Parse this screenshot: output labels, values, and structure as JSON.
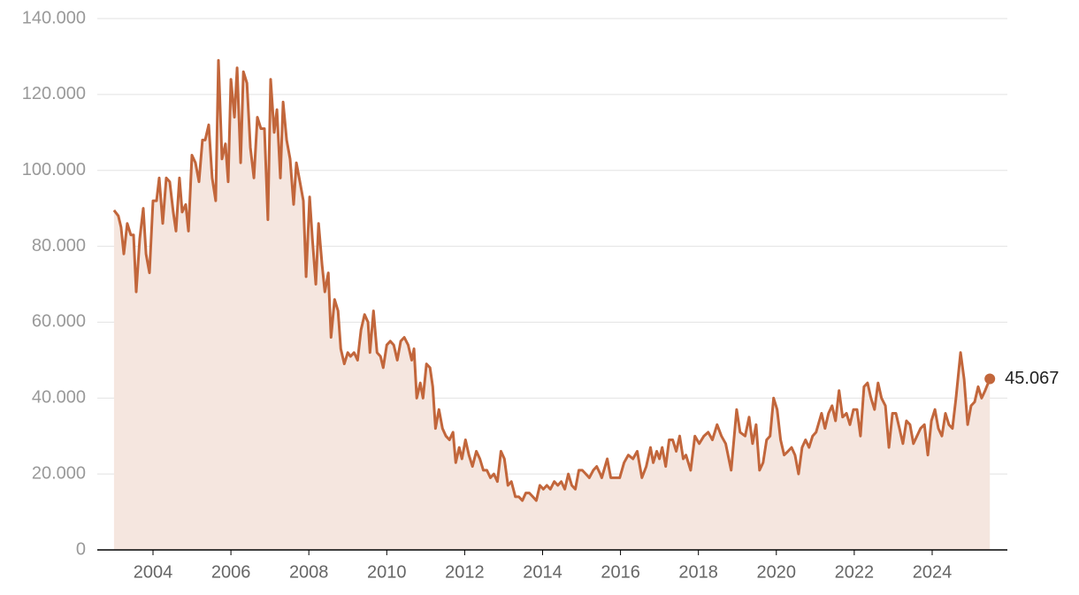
{
  "chart_data": {
    "type": "area",
    "x": [
      2003.0,
      2003.11,
      2003.18,
      2003.25,
      2003.34,
      2003.43,
      2003.5,
      2003.57,
      2003.66,
      2003.75,
      2003.82,
      2003.91,
      2004.0,
      2004.09,
      2004.16,
      2004.25,
      2004.34,
      2004.43,
      2004.52,
      2004.59,
      2004.68,
      2004.75,
      2004.84,
      2004.91,
      2005.0,
      2005.09,
      2005.18,
      2005.27,
      2005.34,
      2005.43,
      2005.52,
      2005.61,
      2005.68,
      2005.77,
      2005.86,
      2005.93,
      2006.0,
      2006.09,
      2006.16,
      2006.25,
      2006.32,
      2006.41,
      2006.5,
      2006.59,
      2006.68,
      2006.77,
      2006.86,
      2006.95,
      2007.02,
      2007.11,
      2007.18,
      2007.27,
      2007.34,
      2007.43,
      2007.52,
      2007.61,
      2007.68,
      2007.77,
      2007.86,
      2007.93,
      2008.02,
      2008.09,
      2008.18,
      2008.25,
      2008.34,
      2008.41,
      2008.5,
      2008.57,
      2008.66,
      2008.75,
      2008.82,
      2008.91,
      2009.0,
      2009.07,
      2009.16,
      2009.25,
      2009.34,
      2009.43,
      2009.52,
      2009.57,
      2009.66,
      2009.75,
      2009.84,
      2009.91,
      2010.0,
      2010.09,
      2010.18,
      2010.27,
      2010.36,
      2010.45,
      2010.55,
      2010.64,
      2010.7,
      2010.77,
      2010.86,
      2010.93,
      2011.02,
      2011.11,
      2011.18,
      2011.25,
      2011.34,
      2011.43,
      2011.52,
      2011.61,
      2011.7,
      2011.77,
      2011.86,
      2011.93,
      2012.02,
      2012.11,
      2012.2,
      2012.3,
      2012.39,
      2012.48,
      2012.57,
      2012.66,
      2012.75,
      2012.84,
      2012.93,
      2013.02,
      2013.11,
      2013.2,
      2013.3,
      2013.39,
      2013.48,
      2013.57,
      2013.66,
      2013.75,
      2013.84,
      2013.93,
      2014.02,
      2014.11,
      2014.2,
      2014.3,
      2014.39,
      2014.48,
      2014.57,
      2014.66,
      2014.75,
      2014.84,
      2014.93,
      2015.02,
      2015.11,
      2015.2,
      2015.3,
      2015.39,
      2015.48,
      2015.52,
      2015.66,
      2015.75,
      2015.98,
      2016.09,
      2016.2,
      2016.32,
      2016.43,
      2016.55,
      2016.66,
      2016.77,
      2016.84,
      2016.93,
      2017.0,
      2017.07,
      2017.16,
      2017.25,
      2017.34,
      2017.43,
      2017.52,
      2017.61,
      2017.68,
      2017.8,
      2017.91,
      2018.02,
      2018.14,
      2018.25,
      2018.36,
      2018.48,
      2018.59,
      2018.7,
      2018.84,
      2018.98,
      2019.07,
      2019.2,
      2019.3,
      2019.39,
      2019.48,
      2019.57,
      2019.66,
      2019.75,
      2019.84,
      2019.93,
      2020.02,
      2020.11,
      2020.2,
      2020.3,
      2020.39,
      2020.48,
      2020.57,
      2020.66,
      2020.75,
      2020.84,
      2020.93,
      2021.02,
      2021.16,
      2021.25,
      2021.34,
      2021.43,
      2021.52,
      2021.61,
      2021.7,
      2021.8,
      2021.89,
      2021.98,
      2022.07,
      2022.16,
      2022.25,
      2022.34,
      2022.43,
      2022.52,
      2022.61,
      2022.7,
      2022.8,
      2022.89,
      2022.98,
      2023.07,
      2023.16,
      2023.25,
      2023.34,
      2023.43,
      2023.52,
      2023.61,
      2023.7,
      2023.8,
      2023.89,
      2023.98,
      2024.07,
      2024.16,
      2024.25,
      2024.34,
      2024.43,
      2024.52,
      2024.61,
      2024.73,
      2024.82,
      2024.91,
      2025.0,
      2025.09,
      2025.18,
      2025.27,
      2025.36,
      2025.48
    ],
    "series": [
      {
        "color": "#c2663b",
        "fill": "#f5e6df",
        "end_label": "45.067",
        "values": [
          89500,
          88000,
          85000,
          78000,
          86000,
          83000,
          83000,
          68000,
          82000,
          90000,
          78000,
          73000,
          92000,
          92000,
          98000,
          86000,
          98000,
          97000,
          89000,
          84000,
          98000,
          89000,
          91000,
          84000,
          104000,
          102000,
          97000,
          108000,
          108000,
          112000,
          98000,
          92000,
          129000,
          103000,
          107000,
          97000,
          124000,
          114000,
          127000,
          102000,
          126000,
          123000,
          106000,
          98000,
          114000,
          111000,
          111000,
          87000,
          124000,
          110000,
          116000,
          98000,
          118000,
          108000,
          103000,
          91000,
          102000,
          97000,
          92000,
          72000,
          93000,
          82000,
          70000,
          86000,
          75000,
          68000,
          73000,
          56000,
          66000,
          63000,
          53000,
          49000,
          52000,
          51000,
          52000,
          50000,
          58000,
          62000,
          60000,
          52000,
          63000,
          52000,
          51000,
          48000,
          54000,
          55000,
          54000,
          50000,
          55000,
          56000,
          54000,
          50000,
          53000,
          40000,
          44000,
          40000,
          49000,
          48000,
          43000,
          32000,
          37000,
          32000,
          30000,
          29000,
          31000,
          23000,
          27000,
          24000,
          29000,
          25000,
          22000,
          26000,
          24000,
          21000,
          21000,
          19000,
          20000,
          18000,
          26000,
          24000,
          17000,
          18000,
          14000,
          14000,
          13000,
          15000,
          15000,
          14000,
          13000,
          17000,
          16000,
          17000,
          16000,
          18000,
          17000,
          18000,
          16000,
          20000,
          17000,
          16000,
          21000,
          21000,
          20000,
          19000,
          21000,
          22000,
          20000,
          19000,
          24000,
          19000,
          19000,
          23000,
          25000,
          24000,
          26000,
          19000,
          22000,
          27000,
          23000,
          26000,
          24000,
          27000,
          22000,
          29000,
          29000,
          26000,
          30000,
          24000,
          25000,
          21000,
          30000,
          28000,
          30000,
          31000,
          29000,
          33000,
          30000,
          28000,
          21000,
          37000,
          31000,
          30000,
          35000,
          28000,
          33000,
          21000,
          23000,
          29000,
          30000,
          40000,
          37000,
          29000,
          25000,
          26000,
          27000,
          25000,
          20000,
          27000,
          29000,
          27000,
          30000,
          31000,
          36000,
          32000,
          36000,
          38000,
          34000,
          42000,
          35000,
          36000,
          33000,
          37000,
          37000,
          30000,
          43000,
          44000,
          40000,
          37000,
          44000,
          40000,
          38000,
          27000,
          36000,
          36000,
          32000,
          28000,
          34000,
          33000,
          28000,
          30000,
          32000,
          33000,
          25000,
          34000,
          37000,
          32000,
          30000,
          36000,
          33000,
          32000,
          40000,
          52000,
          45000,
          33000,
          38000,
          39000,
          43000,
          40000,
          42000,
          45067
        ]
      }
    ],
    "xlim": [
      2002.57,
      2025.93
    ],
    "xticks": [
      2004,
      2006,
      2008,
      2010,
      2012,
      2014,
      2016,
      2018,
      2020,
      2022,
      2024
    ],
    "ylim": [
      0,
      140000
    ],
    "yticks": [
      {
        "value": 0,
        "label": "0"
      },
      {
        "value": 20000,
        "label": "20.000"
      },
      {
        "value": 40000,
        "label": "40.000"
      },
      {
        "value": 60000,
        "label": "60.000"
      },
      {
        "value": 80000,
        "label": "80.000"
      },
      {
        "value": 100000,
        "label": "100.000"
      },
      {
        "value": 120000,
        "label": "120.000"
      },
      {
        "value": 140000,
        "label": "140.000"
      }
    ],
    "grid": true
  }
}
